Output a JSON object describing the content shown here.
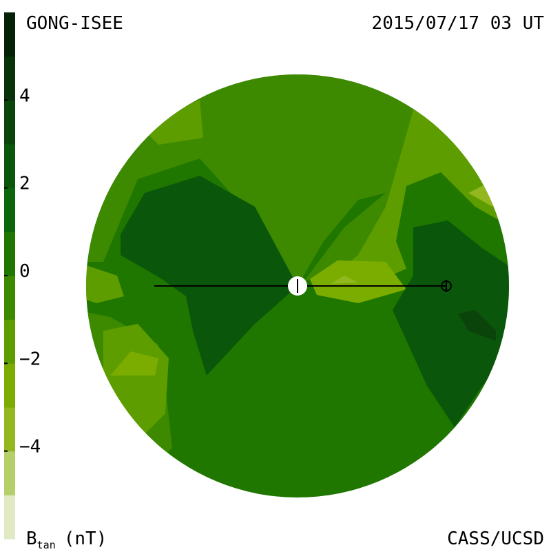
{
  "header": {
    "source": "GONG-ISEE",
    "timestamp": "2015/07/17 03 UT"
  },
  "colorbar": {
    "label": "B",
    "label_subscript": "tan",
    "label_unit": "(nT)",
    "lim": [
      -6,
      6
    ],
    "ticks": [
      4,
      2,
      0,
      {
        "value": -2,
        "label": "−2"
      },
      {
        "value": -4,
        "label": "−4"
      }
    ],
    "colors": [
      "#dfe9c3",
      "#b5cf6a",
      "#92b71f",
      "#7bad00",
      "#5e9d00",
      "#3d8a00",
      "#1f7700",
      "#0b660b",
      "#0a560a",
      "#0b440b",
      "#08320a",
      "#052208"
    ]
  },
  "footer": {
    "credit": "CASS/UCSD"
  }
}
